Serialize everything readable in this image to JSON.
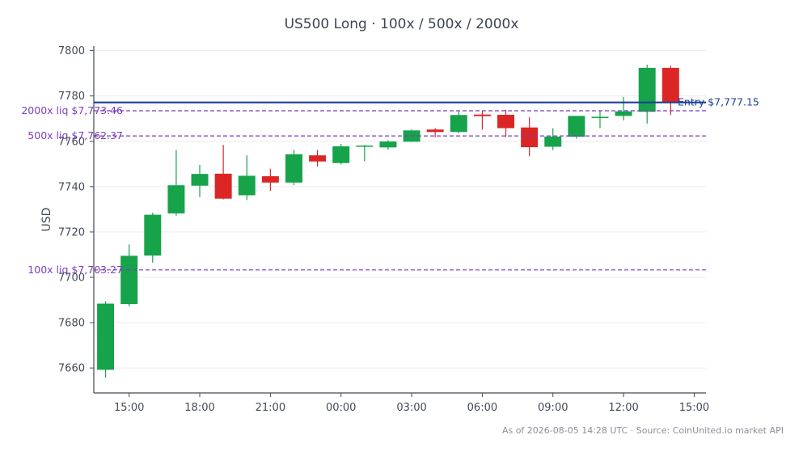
{
  "chart_data": {
    "type": "candlestick",
    "title": "US500 Long · 100x / 500x / 2000x",
    "ylabel": "USD",
    "ylim": [
      7649,
      7802
    ],
    "yticks": [
      7660,
      7680,
      7700,
      7720,
      7740,
      7760,
      7780,
      7800
    ],
    "x_range": [
      "2026-08-04 13:30",
      "2026-08-05 15:30"
    ],
    "xticks": [
      {
        "t": "2026-08-04 15:00",
        "label": "15:00"
      },
      {
        "t": "2026-08-04 18:00",
        "label": "18:00"
      },
      {
        "t": "2026-08-04 21:00",
        "label": "21:00"
      },
      {
        "t": "2026-08-05 00:00",
        "label": "00:00"
      },
      {
        "t": "2026-08-05 03:00",
        "label": "03:00"
      },
      {
        "t": "2026-08-05 06:00",
        "label": "06:00"
      },
      {
        "t": "2026-08-05 09:00",
        "label": "09:00"
      },
      {
        "t": "2026-08-05 12:00",
        "label": "12:00"
      },
      {
        "t": "2026-08-05 15:00",
        "label": "15:00"
      }
    ],
    "candles": [
      {
        "t": "2026-08-04 14:00",
        "o": 7659.2,
        "h": 7689.5,
        "l": 7655.7,
        "c": 7688.4
      },
      {
        "t": "2026-08-04 15:00",
        "o": 7688.2,
        "h": 7714.5,
        "l": 7687.2,
        "c": 7709.5
      },
      {
        "t": "2026-08-04 16:00",
        "o": 7709.6,
        "h": 7728.5,
        "l": 7706.5,
        "c": 7727.6
      },
      {
        "t": "2026-08-04 17:00",
        "o": 7728.2,
        "h": 7756.2,
        "l": 7727.2,
        "c": 7740.6
      },
      {
        "t": "2026-08-04 18:00",
        "o": 7740.4,
        "h": 7749.6,
        "l": 7735.4,
        "c": 7745.6
      },
      {
        "t": "2026-08-04 19:00",
        "o": 7745.7,
        "h": 7758.4,
        "l": 7734.4,
        "c": 7734.7
      },
      {
        "t": "2026-08-04 20:00",
        "o": 7736.2,
        "h": 7753.8,
        "l": 7734.1,
        "c": 7744.8
      },
      {
        "t": "2026-08-04 21:00",
        "o": 7744.6,
        "h": 7747.9,
        "l": 7738.1,
        "c": 7741.8
      },
      {
        "t": "2026-08-04 22:00",
        "o": 7741.8,
        "h": 7756.2,
        "l": 7740.6,
        "c": 7754.3
      },
      {
        "t": "2026-08-04 23:00",
        "o": 7753.8,
        "h": 7756.2,
        "l": 7748.9,
        "c": 7751.1
      },
      {
        "t": "2026-08-05 00:00",
        "o": 7750.4,
        "h": 7758.8,
        "l": 7749.8,
        "c": 7757.8
      },
      {
        "t": "2026-08-05 01:00",
        "o": 7757.6,
        "h": 7758.4,
        "l": 7751.2,
        "c": 7758.1
      },
      {
        "t": "2026-08-05 02:00",
        "o": 7757.3,
        "h": 7760.5,
        "l": 7756.2,
        "c": 7759.9
      },
      {
        "t": "2026-08-05 03:00",
        "o": 7759.8,
        "h": 7765.2,
        "l": 7759.7,
        "c": 7764.8
      },
      {
        "t": "2026-08-05 04:00",
        "o": 7765.2,
        "h": 7765.8,
        "l": 7761.8,
        "c": 7764.1
      },
      {
        "t": "2026-08-05 05:00",
        "o": 7764.1,
        "h": 7773.2,
        "l": 7763.6,
        "c": 7771.6
      },
      {
        "t": "2026-08-05 06:00",
        "o": 7771.8,
        "h": 7773.4,
        "l": 7765.1,
        "c": 7771.1
      },
      {
        "t": "2026-08-05 07:00",
        "o": 7771.7,
        "h": 7773.9,
        "l": 7761.9,
        "c": 7765.8
      },
      {
        "t": "2026-08-05 08:00",
        "o": 7766.1,
        "h": 7770.7,
        "l": 7753.4,
        "c": 7757.4
      },
      {
        "t": "2026-08-05 09:00",
        "o": 7757.6,
        "h": 7765.8,
        "l": 7756.1,
        "c": 7762.1
      },
      {
        "t": "2026-08-05 10:00",
        "o": 7762.0,
        "h": 7771.2,
        "l": 7761.2,
        "c": 7771.2
      },
      {
        "t": "2026-08-05 11:00",
        "o": 7770.6,
        "h": 7773.6,
        "l": 7765.8,
        "c": 7770.8
      },
      {
        "t": "2026-08-05 12:00",
        "o": 7771.2,
        "h": 7779.6,
        "l": 7769.2,
        "c": 7773.2
      },
      {
        "t": "2026-08-05 13:00",
        "o": 7773.0,
        "h": 7793.8,
        "l": 7767.8,
        "c": 7792.4
      },
      {
        "t": "2026-08-05 14:00",
        "o": 7792.4,
        "h": 7793.4,
        "l": 7771.6,
        "c": 7777.2
      }
    ],
    "levels": [
      {
        "name": "entry",
        "value": 7777.15,
        "label": "Entry $7,777.15",
        "color": "#1f3f99",
        "style": "solid",
        "label_side": "right"
      },
      {
        "name": "liq-2000x",
        "value": 7773.46,
        "label": "2000x liq $7,773.46",
        "color": "#7b3fbf",
        "style": "dashed",
        "label_side": "left"
      },
      {
        "name": "liq-500x",
        "value": 7762.37,
        "label": "500x liq $7,762.37",
        "color": "#7b3fbf",
        "style": "dashed",
        "label_side": "left"
      },
      {
        "name": "liq-100x",
        "value": 7703.27,
        "label": "100x liq $7,703.27",
        "color": "#7b3fbf",
        "style": "dashed",
        "label_side": "left"
      }
    ],
    "colors": {
      "up": "#16a34a",
      "down": "#dc2626"
    },
    "grid": true
  },
  "footer": "As of 2026-08-05 14:28 UTC · Source: CoinUnited.io market API"
}
